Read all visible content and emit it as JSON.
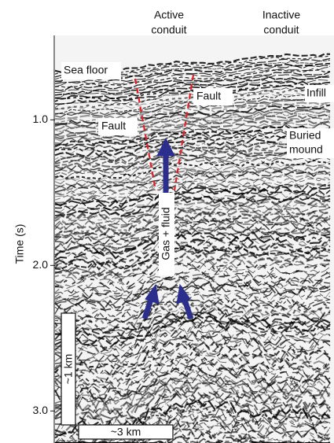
{
  "figure": {
    "labels": {
      "active_conduit": [
        "Active",
        "conduit"
      ],
      "inactive_conduit": [
        "Inactive",
        "conduit"
      ],
      "sea_floor": "Sea floor",
      "fault_right": "Fault",
      "fault_left": "Fault",
      "infill": "Infill",
      "buried_mound": [
        "Buried",
        "mound"
      ],
      "gas_fluid": "Gas + fluid"
    },
    "scale_bars": {
      "vertical": "~1 km",
      "horizontal": "~3 km"
    },
    "axis": {
      "label": "Time (s)",
      "ylim": [
        0.42,
        3.22
      ],
      "ticks": [
        {
          "value": 1,
          "label": "1.0"
        },
        {
          "value": 2,
          "label": "2.0"
        },
        {
          "value": 3,
          "label": "3.0"
        }
      ]
    }
  }
}
